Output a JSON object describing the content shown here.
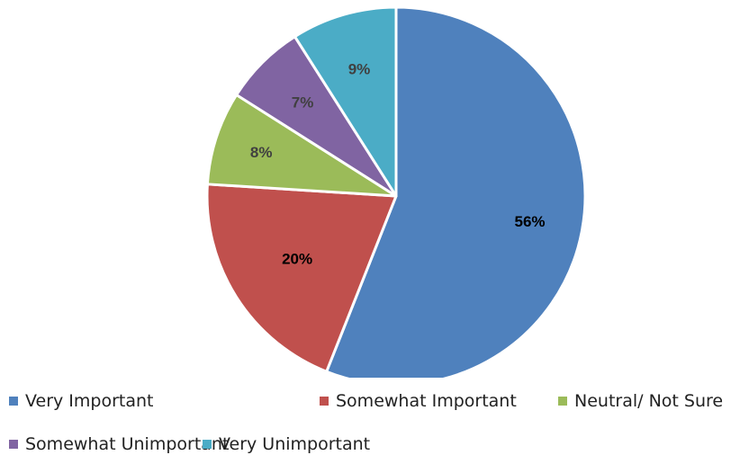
{
  "chart_data": {
    "type": "pie",
    "title": "",
    "start_angle_deg": 0,
    "direction": "clockwise",
    "legend_position": "bottom",
    "slices": [
      {
        "name": "Very Important",
        "value": 56,
        "label": "56%",
        "color": "#4F81BD",
        "label_color": "#000000"
      },
      {
        "name": "Somewhat Important",
        "value": 20,
        "label": "20%",
        "color": "#C0504D",
        "label_color": "#000000"
      },
      {
        "name": "Neutral/ Not Sure",
        "value": 8,
        "label": "8%",
        "color": "#9BBB59",
        "label_color": "#404040"
      },
      {
        "name": "Somewhat Unimportant",
        "value": 7,
        "label": "7%",
        "color": "#8064A2",
        "label_color": "#404040"
      },
      {
        "name": "Very Unimportant",
        "value": 9,
        "label": "9%",
        "color": "#4BACC6",
        "label_color": "#404040"
      }
    ]
  }
}
